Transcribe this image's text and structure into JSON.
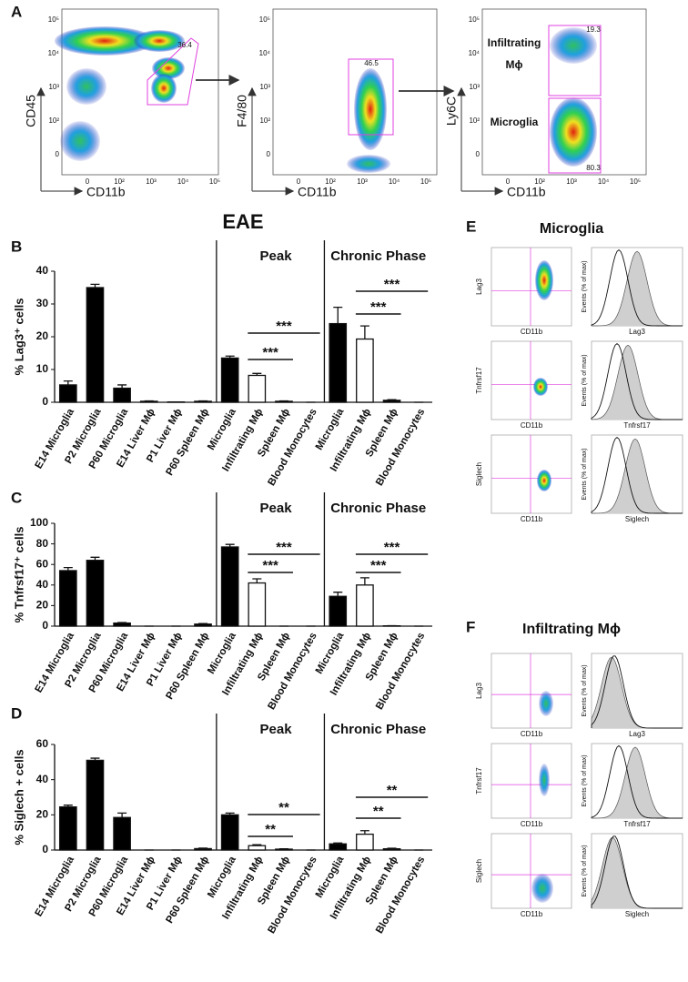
{
  "panel_labels": [
    "A",
    "B",
    "C",
    "D",
    "E",
    "F"
  ],
  "panel_a": {
    "y_ticks": [
      "10⁵",
      "10⁴",
      "10³",
      "10²",
      "0"
    ],
    "x_ticks": [
      "0",
      "10²",
      "10³",
      "10⁴",
      "10⁵"
    ],
    "plots": [
      {
        "y_label": "CD45",
        "x_label": "CD11b",
        "gates": [
          "36.4"
        ]
      },
      {
        "y_label": "F4/80",
        "x_label": "CD11b",
        "gates": [
          "46.5"
        ]
      },
      {
        "y_label": "Ly6C",
        "x_label": "CD11b",
        "gates": [
          "19.3",
          "80.3"
        ],
        "populations": [
          "Infiltrating",
          "Mϕ",
          "Microglia"
        ]
      }
    ]
  },
  "chart_data": [
    {
      "type": "bar",
      "title": "EAE",
      "group_labels": [
        "Peak",
        "Chronic Phase"
      ],
      "y_label": "% Lag3⁺ cells",
      "categories": [
        "E14 Microglia",
        "P2 Microglia",
        "P60 Microglia",
        "E14 Liver Mϕ",
        "P1 Liver Mϕ",
        "P60 Spleen Mϕ",
        "Microglia",
        "Infiltrating Mϕ",
        "Spleen Mϕ",
        "Blood Monocytes",
        "Microglia",
        "Infiltrating Mϕ",
        "Spleen Mϕ",
        "Blood Monocytes"
      ],
      "values": [
        5.3,
        35,
        4.3,
        0.3,
        0.1,
        0.3,
        13.5,
        8.2,
        0.3,
        0,
        24,
        19.3,
        0.6,
        0
      ],
      "errors": [
        1.2,
        1,
        1,
        0.1,
        0,
        0.1,
        0.6,
        0.6,
        0.1,
        0,
        5,
        4,
        0.2,
        0
      ],
      "colors": [
        "#000000",
        "#000000",
        "#000000",
        "#000000",
        "#000000",
        "#000000",
        "#000000",
        "#ffffff",
        "#000000",
        "#000000",
        "#000000",
        "#ffffff",
        "#000000",
        "#000000"
      ],
      "ylim": [
        0,
        40
      ],
      "yticks": [
        0,
        10,
        20,
        30,
        40
      ],
      "annotations": [
        "***",
        "***",
        "***",
        "***"
      ]
    },
    {
      "type": "bar",
      "group_labels": [
        "Peak",
        "Chronic Phase"
      ],
      "y_label": "% Tnfrsf17⁺ cells",
      "categories": [
        "E14 Microglia",
        "P2 Microglia",
        "P60 Microglia",
        "E14 Liver Mϕ",
        "P1 Liver Mϕ",
        "P60 Spleen Mϕ",
        "Microglia",
        "Infiltrating Mϕ",
        "Spleen Mϕ",
        "Blood Monocytes",
        "Microglia",
        "Infiltrating Mϕ",
        "Spleen Mϕ",
        "Blood Monocytes"
      ],
      "values": [
        54,
        64,
        3,
        0,
        0,
        2,
        77,
        42,
        0,
        0,
        29,
        40,
        0.3,
        0
      ],
      "errors": [
        3,
        3,
        0.5,
        0,
        0,
        0.5,
        2.5,
        4,
        0,
        0,
        4,
        7,
        0.1,
        0
      ],
      "colors": [
        "#000000",
        "#000000",
        "#000000",
        "#000000",
        "#000000",
        "#000000",
        "#000000",
        "#ffffff",
        "#000000",
        "#000000",
        "#000000",
        "#ffffff",
        "#000000",
        "#000000"
      ],
      "ylim": [
        0,
        100
      ],
      "yticks": [
        0,
        20,
        40,
        60,
        80,
        100
      ],
      "annotations": [
        "***",
        "***",
        "***",
        "***"
      ]
    },
    {
      "type": "bar",
      "group_labels": [
        "Peak",
        "Chronic Phase"
      ],
      "y_label": "% Siglech + cells",
      "categories": [
        "E14 Microglia",
        "P2 Microglia",
        "P60 Microglia",
        "E14 Liver Mϕ",
        "P1 Liver Mϕ",
        "P60 Spleen Mϕ",
        "Microglia",
        "Infiltrating Mϕ",
        "Spleen Mϕ",
        "Blood Monocytes",
        "Microglia",
        "Infiltrating Mϕ",
        "Spleen Mϕ",
        "Blood Monocytes"
      ],
      "values": [
        24.5,
        51,
        18.5,
        0,
        0,
        0.8,
        20,
        2.5,
        0.5,
        0,
        3.5,
        9,
        0.7,
        0
      ],
      "errors": [
        1,
        1.2,
        2.5,
        0,
        0,
        0.3,
        1,
        0.5,
        0.2,
        0,
        0.5,
        2,
        0.3,
        0
      ],
      "colors": [
        "#000000",
        "#000000",
        "#000000",
        "#000000",
        "#000000",
        "#000000",
        "#000000",
        "#ffffff",
        "#000000",
        "#000000",
        "#000000",
        "#ffffff",
        "#000000",
        "#000000"
      ],
      "ylim": [
        0,
        60
      ],
      "yticks": [
        0,
        20,
        40,
        60
      ],
      "annotations": [
        "**",
        "**",
        "**",
        "**"
      ]
    }
  ],
  "panel_e": {
    "title": "Microglia",
    "x_label": "CD11b",
    "hist_y_label": "Events (% of max)",
    "markers": [
      "Lag3",
      "Tnfrsf17",
      "Siglech"
    ]
  },
  "panel_f": {
    "title": "Infiltrating Mϕ",
    "x_label": "CD11b",
    "hist_y_label": "Events (% of max)",
    "markers": [
      "Lag3",
      "Tnfrsf17",
      "Siglech"
    ]
  }
}
